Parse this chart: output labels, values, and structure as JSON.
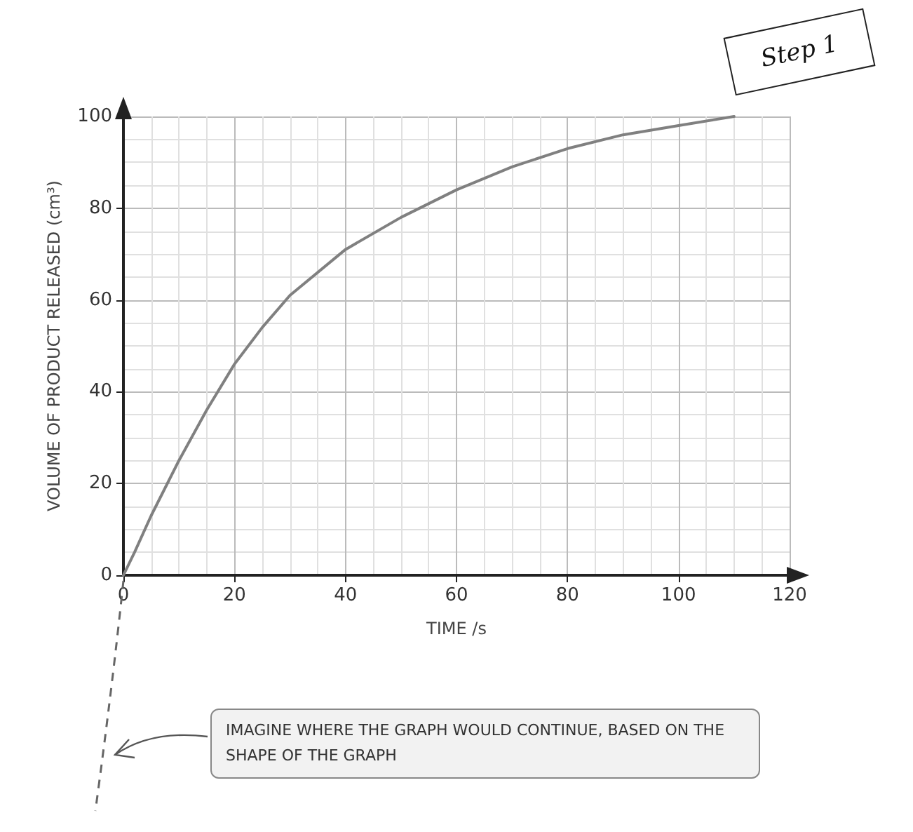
{
  "chart_data": {
    "type": "line",
    "xlabel": "TIME /s",
    "ylabel": "VOLUME OF PRODUCT RELEASED (cm³)",
    "xlim": [
      0,
      120
    ],
    "ylim": [
      0,
      100
    ],
    "xticks": [
      0,
      20,
      40,
      60,
      80,
      100,
      120
    ],
    "yticks": [
      0,
      20,
      40,
      60,
      80,
      100
    ],
    "grid": true,
    "series": [
      {
        "color": "#808080",
        "x": [
          0,
          2,
          5,
          10,
          15,
          20,
          25,
          30,
          40,
          50,
          60,
          70,
          80,
          90,
          100,
          110
        ],
        "values": [
          0,
          5,
          13,
          25,
          36,
          46,
          54,
          61,
          71,
          78,
          84,
          89,
          93,
          96,
          98,
          100
        ]
      }
    ],
    "annotations": [
      "Step 1",
      "IMAGINE WHERE THE GRAPH WOULD CONTINUE, BASED ON THE SHAPE OF THE GRAPH"
    ]
  }
}
